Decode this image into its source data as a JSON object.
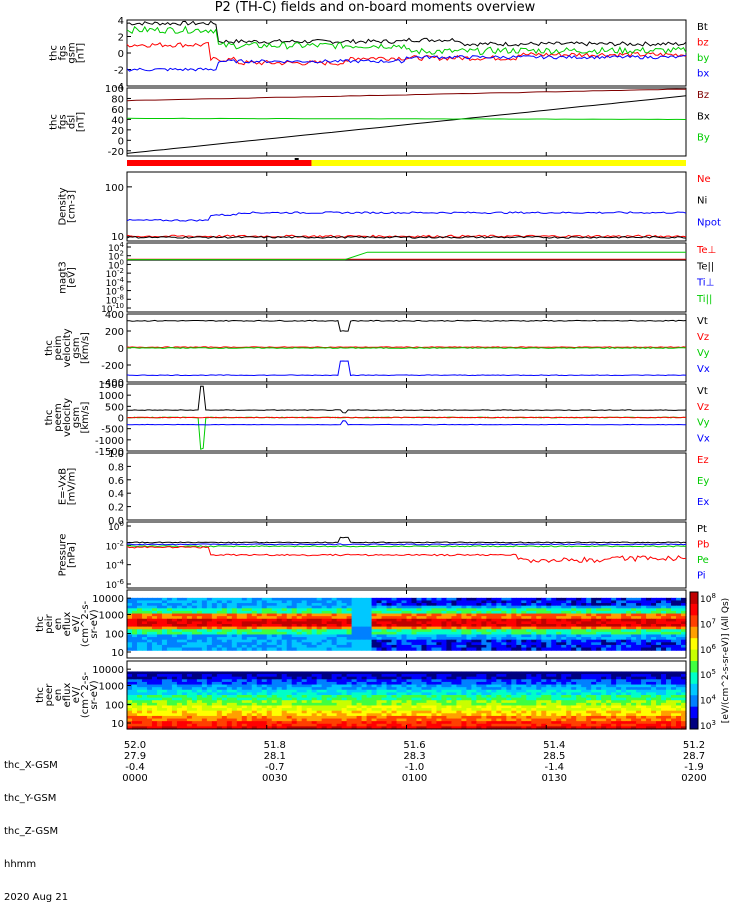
{
  "title": "P2 (TH-C) fields and on-board moments overview",
  "legend_colors": {
    "black": "#000000",
    "red": "#ff0000",
    "green": "#00c800",
    "blue": "#0000ff",
    "yellow": "#ffff00"
  },
  "chart_data": [
    {
      "type": "line",
      "id": "fgs_gsm",
      "ylabel": [
        "thc",
        "fgs",
        "gsm",
        "[nT]"
      ],
      "ylim": [
        -4,
        4
      ],
      "yticks": [
        -4,
        -2,
        0,
        2,
        4
      ],
      "legend": [
        "Bt",
        "bz",
        "by",
        "bx"
      ],
      "legend_colors": [
        "#000",
        "#f00",
        "#0c0",
        "#00f"
      ]
    },
    {
      "type": "line",
      "id": "fgs_dsl",
      "ylabel": [
        "thc",
        "fgs",
        "dsl",
        "[nT]"
      ],
      "ylim": [
        -30,
        100
      ],
      "yticks": [
        -20,
        0,
        20,
        40,
        60,
        80,
        100
      ],
      "legend": [
        "Bz",
        "Bx",
        "By"
      ],
      "legend_colors": [
        "#800000",
        "#000",
        "#0c0"
      ]
    },
    {
      "type": "bar",
      "id": "mode_bar",
      "segments": [
        {
          "from": 0,
          "to": 0.33,
          "color": "#f00"
        },
        {
          "from": 0.33,
          "to": 1,
          "color": "#ff0"
        }
      ]
    },
    {
      "type": "line",
      "id": "density",
      "ylabel": [
        "Density",
        "[cm-3]"
      ],
      "yscale": "log",
      "ylim": [
        8,
        200
      ],
      "yticks": [
        10,
        100
      ],
      "legend": [
        "Ne",
        "Ni",
        "Npot"
      ],
      "legend_colors": [
        "#f00",
        "#000",
        "#00f"
      ]
    },
    {
      "type": "line",
      "id": "temperature",
      "ylabel": [
        "magt3",
        "[eV]"
      ],
      "yscale": "log",
      "yticks": [
        "10^4",
        "10^2",
        "10^0",
        "10^-2",
        "10^-4",
        "10^-6",
        "10^-8",
        "10^-10"
      ],
      "legend": [
        "Te⊥",
        "Te||",
        "Ti⊥",
        "Ti||"
      ],
      "legend_colors": [
        "#f00",
        "#000",
        "#00f",
        "#0c0"
      ]
    },
    {
      "type": "line",
      "id": "peim_velocity",
      "ylabel": [
        "thc",
        "peim",
        "velocity",
        "gsm",
        "[km/s]"
      ],
      "ylim": [
        -400,
        400
      ],
      "yticks": [
        -400,
        -200,
        0,
        200,
        400
      ],
      "legend": [
        "Vt",
        "Vz",
        "Vy",
        "Vx"
      ],
      "legend_colors": [
        "#000",
        "#f00",
        "#0c0",
        "#00f"
      ]
    },
    {
      "type": "line",
      "id": "peem_velocity",
      "ylabel": [
        "thc",
        "peem",
        "velocity",
        "gsm",
        "[km/s]"
      ],
      "ylim": [
        -1500,
        1500
      ],
      "yticks": [
        -1500,
        -1000,
        -500,
        0,
        500,
        1000,
        1500
      ],
      "legend": [
        "Vt",
        "Vz",
        "Vy",
        "Vx"
      ],
      "legend_colors": [
        "#000",
        "#f00",
        "#0c0",
        "#00f"
      ]
    },
    {
      "type": "line",
      "id": "efield",
      "ylabel": [
        "E=-VxB",
        "[mV/m]"
      ],
      "ylim": [
        0,
        1
      ],
      "yticks": [
        0.0,
        0.2,
        0.4,
        0.6,
        0.8,
        1.0
      ],
      "legend": [
        "Ez",
        "Ey",
        "Ex"
      ],
      "legend_colors": [
        "#f00",
        "#0c0",
        "#00f"
      ]
    },
    {
      "type": "line",
      "id": "pressure",
      "ylabel": [
        "Pressure",
        "[nPa]"
      ],
      "yscale": "log",
      "yticks": [
        "10^0",
        "10^-2",
        "10^-4",
        "10^-6"
      ],
      "legend": [
        "Pt",
        "Pb",
        "Pe",
        "Pi"
      ],
      "legend_colors": [
        "#000",
        "#f00",
        "#0c0",
        "#00f"
      ]
    },
    {
      "type": "heatmap",
      "id": "peir_eflux",
      "ylabel": [
        "thc",
        "peir",
        "en",
        "eflux",
        "eV/",
        "(cm^2-s-",
        "sr-eV)"
      ],
      "yscale": "log",
      "yticks": [
        10,
        100,
        1000,
        10000
      ]
    },
    {
      "type": "heatmap",
      "id": "peer_eflux",
      "ylabel": [
        "thc",
        "peer",
        "en",
        "eflux",
        "eV/",
        "(cm^2-s-",
        "sr-eV)"
      ],
      "yscale": "log",
      "yticks": [
        10,
        100,
        1000,
        10000
      ]
    }
  ],
  "colorbar": {
    "label": "[eV/(cm^2-s-sr-eV)] (All Qs)",
    "ticks": [
      "10^8",
      "10^7",
      "10^6",
      "10^5",
      "10^4",
      "10^3"
    ]
  },
  "xaxis": {
    "labels": [
      "thc_X-GSM",
      "thc_Y-GSM",
      "thc_Z-GSM",
      "hhmm",
      "2020 Aug 21"
    ],
    "ticks": [
      {
        "x": "52.0",
        "y": "27.9",
        "z": "-0.4",
        "hhmm": "0000"
      },
      {
        "x": "51.8",
        "y": "28.1",
        "z": "-0.7",
        "hhmm": "0030"
      },
      {
        "x": "51.6",
        "y": "28.3",
        "z": "-1.0",
        "hhmm": "0100"
      },
      {
        "x": "51.4",
        "y": "28.5",
        "z": "-1.4",
        "hhmm": "0130"
      },
      {
        "x": "51.2",
        "y": "28.7",
        "z": "-1.9",
        "hhmm": "0200"
      }
    ]
  }
}
